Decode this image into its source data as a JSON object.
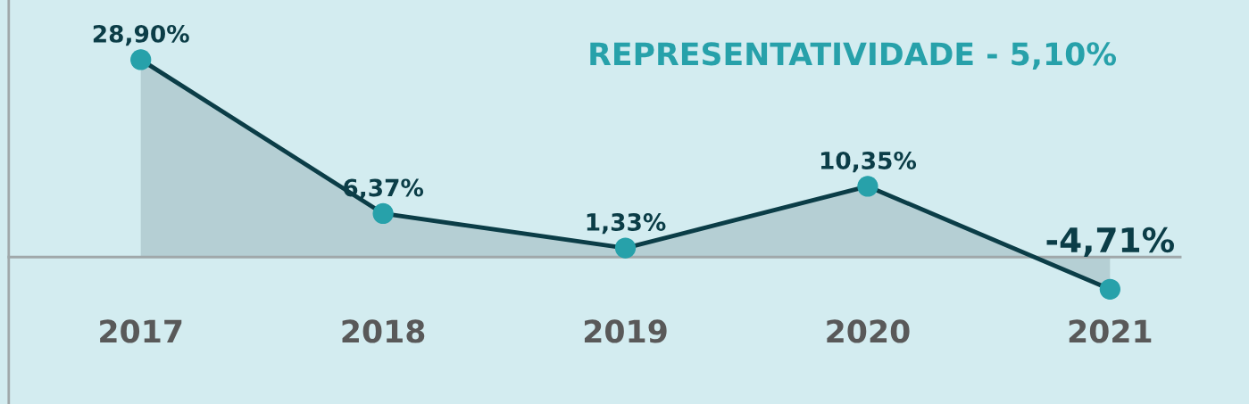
{
  "chart_data": {
    "type": "area",
    "title": "REPRESENTATIVIDADE - 5,10%",
    "categories": [
      "2017",
      "2018",
      "2019",
      "2020",
      "2021"
    ],
    "series": [
      {
        "color": "#0b3d47",
        "colors": [
          "#27a1aa",
          "#27a1aa",
          "#27a1aa",
          "#27a1aa",
          "#27a1aa"
        ],
        "values": [
          28.9,
          6.37,
          1.33,
          10.35,
          -4.71
        ],
        "value_labels": [
          "28,90%",
          "6,37%",
          "1,33%",
          "10,35%",
          "-4,71%"
        ]
      }
    ],
    "marker": "circle",
    "tick_labels": "x",
    "grid": false,
    "legend": false
  }
}
